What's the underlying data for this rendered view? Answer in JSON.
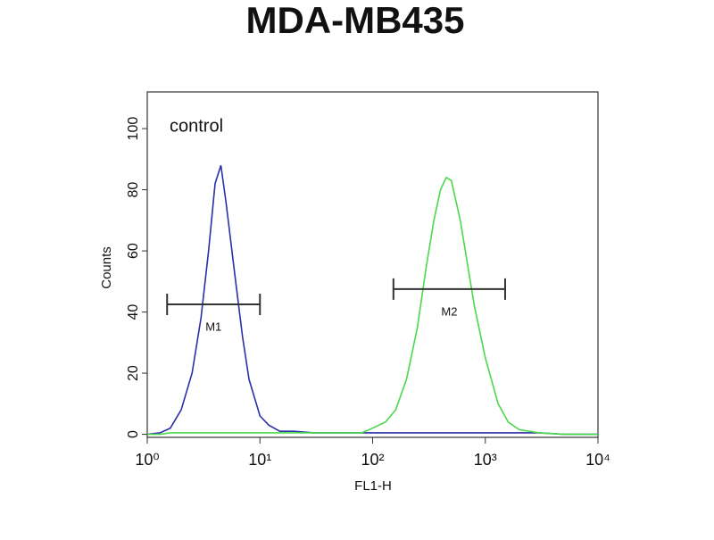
{
  "chart_data": {
    "type": "line",
    "title": "MDA-MB435",
    "x_label": "FL1-H",
    "y_label": "Counts",
    "annotation": "control",
    "x_scale": "log",
    "xlim": [
      1,
      10000
    ],
    "xticks": [
      {
        "value": 1,
        "label": "10⁰"
      },
      {
        "value": 10,
        "label": "10¹"
      },
      {
        "value": 100,
        "label": "10²"
      },
      {
        "value": 1000,
        "label": "10³"
      },
      {
        "value": 10000,
        "label": "10⁴"
      }
    ],
    "ylim": [
      -1,
      112
    ],
    "yticks": [
      0,
      20,
      40,
      60,
      80,
      100
    ],
    "x": [
      1,
      1.3,
      1.6,
      2,
      2.5,
      3,
      3.5,
      4,
      4.5,
      5,
      6,
      7,
      8,
      10,
      12,
      15,
      20,
      30,
      50,
      80,
      100,
      130,
      160,
      200,
      250,
      300,
      350,
      400,
      450,
      500,
      600,
      700,
      800,
      1000,
      1300,
      1600,
      2000,
      3000,
      5000,
      10000
    ],
    "series": [
      {
        "color": "#2b2fa8",
        "values": [
          0,
          0.5,
          2,
          8,
          20,
          38,
          60,
          82,
          88,
          76,
          52,
          32,
          18,
          6,
          3,
          1,
          1,
          0.5,
          0.5,
          0.5,
          0.5,
          0.5,
          0.5,
          0.5,
          0.5,
          0.5,
          0.5,
          0.5,
          0.5,
          0.5,
          0.5,
          0.5,
          0.5,
          0.5,
          0.5,
          0.5,
          0.5,
          0.5,
          0,
          0
        ]
      },
      {
        "color": "#4cd84c",
        "values": [
          0,
          0,
          0.5,
          0.5,
          0.5,
          0.5,
          0.5,
          0.5,
          0.5,
          0.5,
          0.5,
          0.5,
          0.5,
          0.5,
          0.5,
          0.5,
          0.5,
          0.5,
          0.5,
          0.5,
          2,
          4,
          8,
          18,
          35,
          55,
          70,
          80,
          84,
          83,
          70,
          55,
          42,
          25,
          10,
          4,
          1.5,
          0.5,
          0,
          0
        ]
      }
    ],
    "gates": [
      {
        "label": "M1",
        "x": [
          1.5,
          10
        ],
        "y": 42.5
      },
      {
        "label": "M2",
        "x": [
          153,
          1500
        ],
        "y": 47.5
      }
    ]
  }
}
